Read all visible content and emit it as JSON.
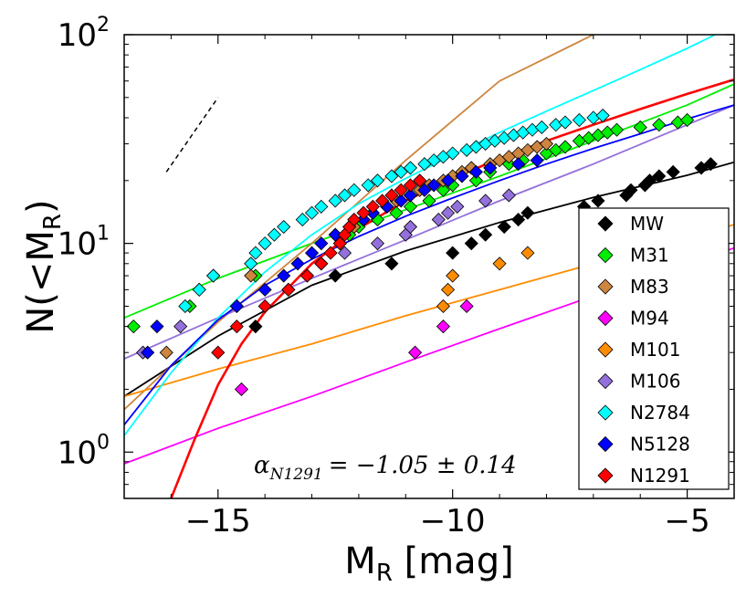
{
  "chart_data": {
    "type": "scatter",
    "title": "",
    "xlabel": "M_R [mag]",
    "ylabel": "N(< M_R)",
    "x_label_main": "M",
    "x_label_sub": "R",
    "x_label_unit": "[mag]",
    "y_label_main": "N(<M",
    "y_label_sub": "R",
    "y_label_close": ")",
    "xlim": [
      -17,
      -4
    ],
    "ylim": [
      0.6,
      100
    ],
    "yscale": "log",
    "x_ticks": [
      -15,
      -10,
      -5
    ],
    "x_tick_labels": [
      "−15",
      "−10",
      "−5"
    ],
    "y_ticks": [
      1,
      10,
      100
    ],
    "y_tick_base": "10",
    "y_tick_exponents": [
      "0",
      "1",
      "2"
    ],
    "legend_position": "lower-right",
    "annotation": {
      "symbol": "α",
      "subscript": "N1291",
      "value_text": "= −1.05 ± 0.14"
    },
    "reference_line": {
      "style": "dashed",
      "x": [
        -16.1,
        -15.0
      ],
      "y": [
        22,
        50
      ]
    },
    "series": [
      {
        "name": "MW",
        "color": "#000000",
        "points": [
          [
            -14.2,
            4
          ],
          [
            -12.5,
            7
          ],
          [
            -11.3,
            8
          ],
          [
            -10,
            9
          ],
          [
            -9.6,
            10
          ],
          [
            -9.3,
            11
          ],
          [
            -8.9,
            12
          ],
          [
            -8.6,
            13
          ],
          [
            -8.4,
            14
          ],
          [
            -7.2,
            15
          ],
          [
            -6.9,
            16
          ],
          [
            -6.3,
            17
          ],
          [
            -6.2,
            18
          ],
          [
            -5.9,
            19
          ],
          [
            -5.8,
            20
          ],
          [
            -5.6,
            21
          ],
          [
            -5.3,
            22
          ],
          [
            -4.7,
            23
          ],
          [
            -4.5,
            24
          ]
        ],
        "fit": [
          [
            -17,
            1.85
          ],
          [
            -15,
            3.6
          ],
          [
            -13,
            6.3
          ],
          [
            -11,
            9.2
          ],
          [
            -9,
            12.6
          ],
          [
            -7,
            16.6
          ],
          [
            -5,
            21.2
          ],
          [
            -4,
            24.5
          ]
        ]
      },
      {
        "name": "M31",
        "color": "#00ee00",
        "points": [
          [
            -16.8,
            4
          ],
          [
            -15.6,
            5
          ],
          [
            -15.4,
            6
          ],
          [
            -15.1,
            7
          ],
          [
            -14.2,
            7
          ],
          [
            -12.4,
            10
          ],
          [
            -12.2,
            11
          ],
          [
            -12.0,
            12
          ],
          [
            -11.6,
            13
          ],
          [
            -11.2,
            14
          ],
          [
            -10.9,
            15
          ],
          [
            -10.5,
            16
          ],
          [
            -10.2,
            18
          ],
          [
            -10.0,
            19
          ],
          [
            -9.5,
            20
          ],
          [
            -9.2,
            22
          ],
          [
            -8.8,
            24
          ],
          [
            -8.5,
            25
          ],
          [
            -8.0,
            27
          ],
          [
            -7.8,
            28
          ],
          [
            -7.6,
            29
          ],
          [
            -7.3,
            31
          ],
          [
            -7.1,
            32
          ],
          [
            -6.9,
            33
          ],
          [
            -6.7,
            34
          ],
          [
            -6.5,
            35
          ],
          [
            -6.0,
            36
          ],
          [
            -5.6,
            37
          ],
          [
            -5.2,
            38
          ],
          [
            -5.0,
            39
          ]
        ],
        "fit": [
          [
            -17,
            4.4
          ],
          [
            -15,
            6.8
          ],
          [
            -13,
            10
          ],
          [
            -11,
            14.5
          ],
          [
            -9,
            21
          ],
          [
            -7,
            31
          ],
          [
            -5,
            46
          ],
          [
            -4,
            58
          ]
        ]
      },
      {
        "name": "M83",
        "color": "#cd853f",
        "points": [
          [
            -16.1,
            3
          ],
          [
            -14.3,
            7
          ],
          [
            -12.5,
            11
          ],
          [
            -12.1,
            12
          ],
          [
            -11.9,
            13
          ],
          [
            -11.7,
            14
          ],
          [
            -11.4,
            15
          ],
          [
            -11.2,
            16
          ],
          [
            -10.9,
            17
          ],
          [
            -10.7,
            18
          ],
          [
            -10.5,
            19
          ],
          [
            -10.2,
            20
          ],
          [
            -10.0,
            21
          ],
          [
            -9.8,
            22
          ],
          [
            -9.6,
            23
          ],
          [
            -9.2,
            24
          ],
          [
            -9.0,
            25
          ],
          [
            -8.8,
            26
          ],
          [
            -8.6,
            27
          ],
          [
            -8.4,
            28
          ],
          [
            -8.2,
            29
          ],
          [
            -8.0,
            30
          ]
        ],
        "fit": [
          [
            -17,
            1.6
          ],
          [
            -15,
            4.2
          ],
          [
            -13,
            10
          ],
          [
            -11,
            25
          ],
          [
            -9,
            60
          ],
          [
            -7,
            100
          ]
        ]
      },
      {
        "name": "M94",
        "color": "#ff00ff",
        "points": [
          [
            -14.5,
            2
          ],
          [
            -10.8,
            3
          ],
          [
            -10.2,
            4
          ],
          [
            -9.7,
            5
          ]
        ],
        "fit": [
          [
            -17,
            0.88
          ],
          [
            -15,
            1.3
          ],
          [
            -13,
            1.85
          ],
          [
            -11,
            2.7
          ],
          [
            -9,
            3.9
          ],
          [
            -7,
            5.6
          ],
          [
            -5,
            8
          ],
          [
            -4,
            9.5
          ]
        ]
      },
      {
        "name": "M101",
        "color": "#ff8c00",
        "points": [
          [
            -10.2,
            5
          ],
          [
            -10.1,
            6
          ],
          [
            -10.0,
            7
          ],
          [
            -9.0,
            8
          ],
          [
            -8.4,
            9
          ]
        ],
        "fit": [
          [
            -17,
            1.85
          ],
          [
            -15,
            2.5
          ],
          [
            -13,
            3.3
          ],
          [
            -11,
            4.5
          ],
          [
            -9,
            6
          ],
          [
            -7,
            8
          ],
          [
            -5,
            10.7
          ],
          [
            -4,
            12.3
          ]
        ]
      },
      {
        "name": "M106",
        "color": "#9370db",
        "points": [
          [
            -16.6,
            3
          ],
          [
            -15.8,
            4
          ],
          [
            -14.6,
            5
          ],
          [
            -13.5,
            6
          ],
          [
            -13.1,
            7
          ],
          [
            -12.8,
            8
          ],
          [
            -12.3,
            9
          ],
          [
            -11.6,
            10
          ],
          [
            -11.0,
            11
          ],
          [
            -10.9,
            12
          ],
          [
            -10.3,
            13
          ],
          [
            -10.1,
            14
          ],
          [
            -9.9,
            15
          ],
          [
            -9.3,
            16
          ],
          [
            -8.8,
            17
          ]
        ],
        "fit": [
          [
            -17,
            2.8
          ],
          [
            -15,
            4.4
          ],
          [
            -13,
            6.8
          ],
          [
            -11,
            10.4
          ],
          [
            -9,
            16
          ],
          [
            -7,
            24
          ],
          [
            -5,
            37
          ],
          [
            -4,
            46
          ]
        ]
      },
      {
        "name": "N2784",
        "color": "#00ffff",
        "points": [
          [
            -15.7,
            5
          ],
          [
            -15.4,
            6
          ],
          [
            -15.1,
            7
          ],
          [
            -14.3,
            8
          ],
          [
            -14.2,
            9
          ],
          [
            -14.0,
            10
          ],
          [
            -13.8,
            11
          ],
          [
            -13.6,
            12
          ],
          [
            -13.2,
            13
          ],
          [
            -13.0,
            14
          ],
          [
            -12.8,
            15
          ],
          [
            -12.5,
            16
          ],
          [
            -12.3,
            17
          ],
          [
            -12.1,
            18
          ],
          [
            -11.8,
            19
          ],
          [
            -11.6,
            20
          ],
          [
            -11.3,
            21
          ],
          [
            -11.1,
            22
          ],
          [
            -10.9,
            23
          ],
          [
            -10.6,
            24
          ],
          [
            -10.4,
            25
          ],
          [
            -10.2,
            26
          ],
          [
            -10.0,
            27
          ],
          [
            -9.7,
            28
          ],
          [
            -9.5,
            29
          ],
          [
            -9.3,
            30
          ],
          [
            -9.1,
            31
          ],
          [
            -8.9,
            32
          ],
          [
            -8.7,
            33
          ],
          [
            -8.5,
            34
          ],
          [
            -8.3,
            35
          ],
          [
            -8.1,
            36
          ],
          [
            -7.8,
            37
          ],
          [
            -7.6,
            38
          ],
          [
            -7.3,
            39
          ],
          [
            -7.0,
            40
          ],
          [
            -6.8,
            41
          ]
        ],
        "fit": [
          [
            -17,
            1.2
          ],
          [
            -16,
            2.4
          ],
          [
            -15,
            4.4
          ],
          [
            -14,
            7.3
          ],
          [
            -13,
            11
          ],
          [
            -12,
            15.5
          ],
          [
            -11,
            20.5
          ],
          [
            -10,
            26.5
          ],
          [
            -9,
            34
          ],
          [
            -8,
            43
          ],
          [
            -7,
            54
          ],
          [
            -6,
            68
          ],
          [
            -5,
            86
          ],
          [
            -4.4,
            100
          ]
        ]
      },
      {
        "name": "N5128",
        "color": "#0000ff",
        "points": [
          [
            -16.5,
            3
          ],
          [
            -16.3,
            4
          ],
          [
            -14.6,
            5
          ],
          [
            -14.0,
            6
          ],
          [
            -13.6,
            7
          ],
          [
            -13.3,
            8
          ],
          [
            -13.0,
            9
          ],
          [
            -12.8,
            10
          ],
          [
            -12.5,
            11
          ],
          [
            -12.2,
            12
          ],
          [
            -11.9,
            13
          ],
          [
            -11.7,
            14
          ],
          [
            -11.4,
            15
          ],
          [
            -11.1,
            16
          ],
          [
            -10.9,
            17
          ],
          [
            -10.6,
            18
          ],
          [
            -10.4,
            19
          ],
          [
            -10.1,
            20
          ],
          [
            -9.8,
            21
          ],
          [
            -9.5,
            22
          ],
          [
            -9.2,
            23
          ],
          [
            -8.6,
            24
          ],
          [
            -8.2,
            25
          ]
        ],
        "fit": [
          [
            -17,
            1.35
          ],
          [
            -16,
            2.6
          ],
          [
            -15,
            4.3
          ],
          [
            -14,
            6.3
          ],
          [
            -13,
            8.4
          ],
          [
            -12,
            10.8
          ],
          [
            -11,
            13.5
          ],
          [
            -10,
            16.5
          ],
          [
            -9,
            20
          ],
          [
            -8,
            24
          ],
          [
            -7,
            28.5
          ],
          [
            -6,
            33.5
          ],
          [
            -5,
            39.5
          ],
          [
            -4,
            46
          ]
        ]
      },
      {
        "name": "N1291",
        "color": "#ff0000",
        "points": [
          [
            -15.0,
            3
          ],
          [
            -14.6,
            4
          ],
          [
            -14.0,
            5
          ],
          [
            -13.5,
            6
          ],
          [
            -13.1,
            7
          ],
          [
            -12.8,
            8
          ],
          [
            -12.6,
            9
          ],
          [
            -12.4,
            10
          ],
          [
            -12.3,
            11
          ],
          [
            -12.2,
            12
          ],
          [
            -12.1,
            13
          ],
          [
            -11.9,
            14
          ],
          [
            -11.7,
            15
          ],
          [
            -11.5,
            16
          ],
          [
            -11.3,
            17
          ],
          [
            -11.1,
            18
          ],
          [
            -10.9,
            19
          ],
          [
            -10.7,
            20
          ]
        ],
        "fit": [
          [
            -16.0,
            0.6
          ],
          [
            -15.5,
            1.15
          ],
          [
            -15,
            2.1
          ],
          [
            -14.5,
            3.3
          ],
          [
            -14,
            4.7
          ],
          [
            -13,
            8
          ],
          [
            -12,
            11.8
          ],
          [
            -11,
            16
          ],
          [
            -10,
            20.5
          ],
          [
            -9,
            25.5
          ],
          [
            -8,
            31
          ],
          [
            -7,
            37
          ],
          [
            -6,
            44
          ],
          [
            -5,
            52
          ],
          [
            -4,
            61
          ]
        ]
      }
    ]
  }
}
